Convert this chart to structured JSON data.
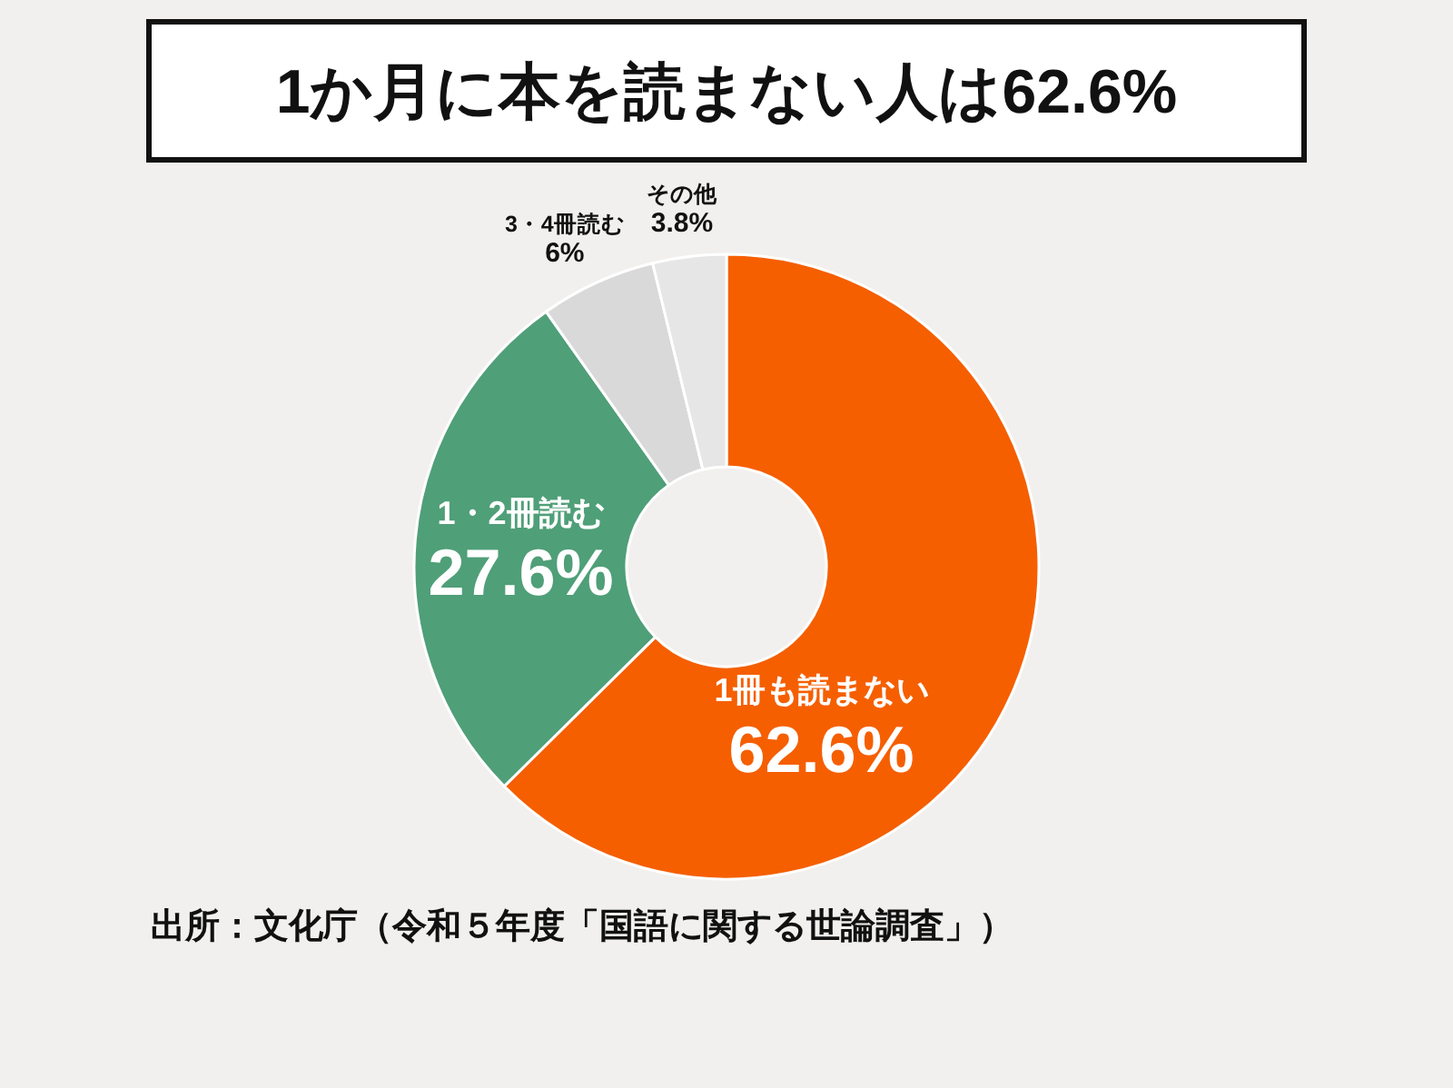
{
  "chart_data": {
    "type": "donut",
    "title": "1か月に本を読まない人は62.6%",
    "categories": [
      "1冊も読まない",
      "1・2冊読む",
      "3・4冊読む",
      "その他"
    ],
    "values": [
      62.6,
      27.6,
      6,
      3.8
    ],
    "colors": [
      "#f55f00",
      "#4f9f78",
      "#d9d9d9",
      "#e6e6e6"
    ],
    "value_labels": [
      "62.6%",
      "27.6%",
      "6%",
      "3.8%"
    ],
    "annotations": [
      "出所：文化庁（令和５年度「国語に関する世論調査」）"
    ]
  }
}
